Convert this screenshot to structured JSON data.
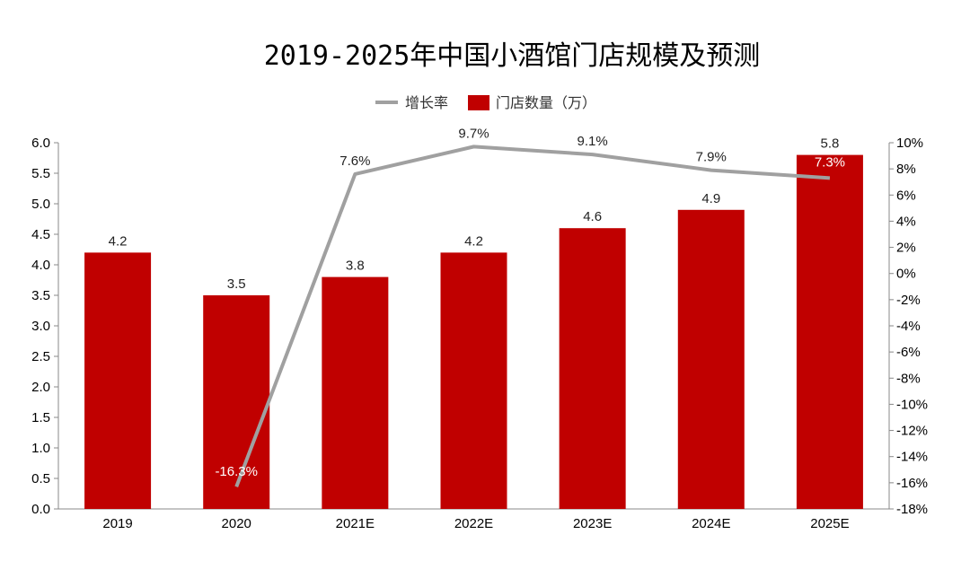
{
  "chart_data": {
    "type": "bar+line",
    "title": "2019-2025年中国小酒馆门店规模及预测",
    "categories": [
      "2019",
      "2020",
      "2021E",
      "2022E",
      "2023E",
      "2024E",
      "2025E"
    ],
    "series": [
      {
        "name": "门店数量（万）",
        "type": "bar",
        "axis": "left",
        "color": "#C00000",
        "values": [
          4.2,
          3.5,
          3.8,
          4.2,
          4.6,
          4.9,
          5.8
        ]
      },
      {
        "name": "增长率",
        "type": "line",
        "axis": "right",
        "color": "#A0A0A0",
        "values": [
          null,
          -16.3,
          7.6,
          9.7,
          9.1,
          7.9,
          7.3
        ]
      }
    ],
    "bar_labels": [
      "4.2",
      "3.5",
      "3.8",
      "4.2",
      "4.6",
      "4.9",
      "5.8"
    ],
    "line_labels": [
      "",
      "-16.3%",
      "7.6%",
      "9.7%",
      "9.1%",
      "7.9%",
      "7.3%"
    ],
    "left_axis": {
      "range": [
        0,
        6
      ],
      "ticks": [
        "0.0",
        "0.5",
        "1.0",
        "1.5",
        "2.0",
        "2.5",
        "3.0",
        "3.5",
        "4.0",
        "4.5",
        "5.0",
        "5.5",
        "6.0"
      ]
    },
    "right_axis": {
      "range": [
        -18,
        10
      ],
      "unit": "%",
      "ticks": [
        "-18%",
        "-16%",
        "-14%",
        "-12%",
        "-10%",
        "-8%",
        "-6%",
        "-4%",
        "-2%",
        "0%",
        "2%",
        "4%",
        "6%",
        "8%",
        "10%"
      ]
    },
    "grid": false,
    "legend": "top-center"
  }
}
